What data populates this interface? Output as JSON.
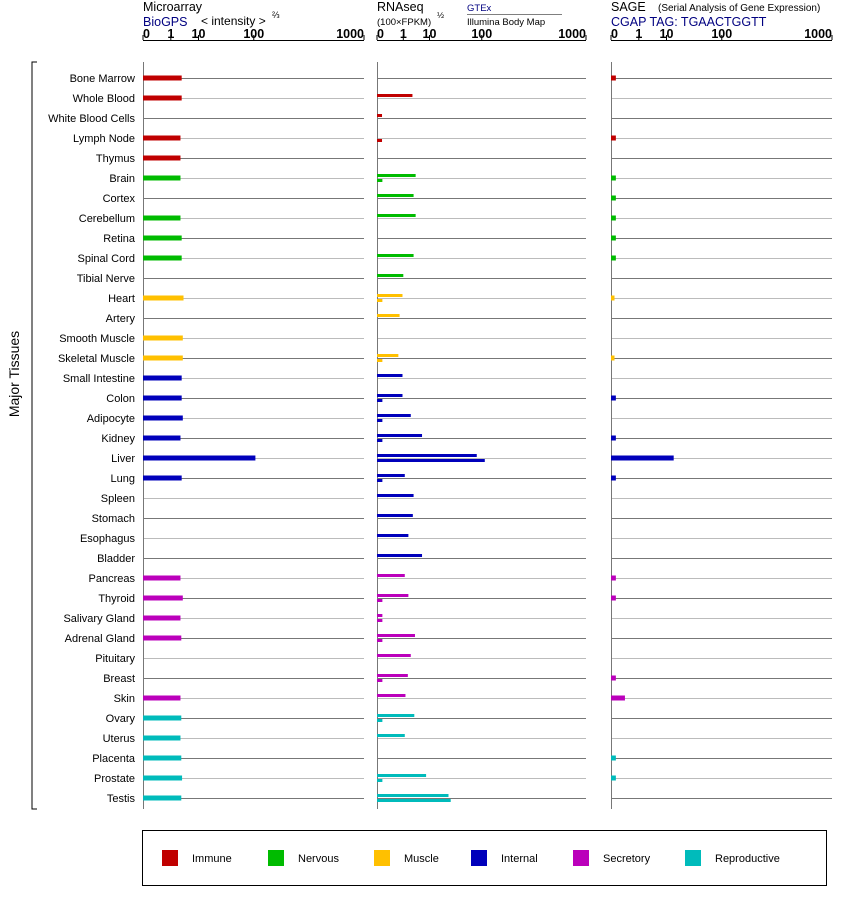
{
  "colors": {
    "Immune": "#c00000",
    "Nervous": "#00bb00",
    "Muscle": "#ffc000",
    "Internal": "#0000bb",
    "Secretory": "#bb00bb",
    "Reproductive": "#00bbbb",
    "blue_text": "#000080"
  },
  "y_axis_label": "Major Tissues",
  "legend": [
    "Immune",
    "Nervous",
    "Muscle",
    "Internal",
    "Secretory",
    "Reproductive"
  ],
  "panels": {
    "microarray": {
      "title": "Microarray",
      "source": "BioGPS",
      "unit_label": "< intensity >",
      "unit_exp": "⅔"
    },
    "rnaseq": {
      "title": "RNAseq",
      "unit_label": "(100×FPKM)",
      "unit_exp": "½",
      "legend_top": "GTEx",
      "legend_bottom": "Illumina Body Map"
    },
    "sage": {
      "title": "SAGE",
      "subtitle": "(Serial Analysis of Gene Expression)",
      "tag_label": "CGAP TAG: TGAACTGGTT"
    }
  },
  "chart_data": {
    "type": "bar",
    "orientation": "horizontal",
    "x_scale": "power",
    "tick_labels": [
      "0",
      "1",
      "10",
      "100",
      "1000"
    ],
    "ticks": [
      0,
      1,
      10,
      100,
      1000
    ],
    "xlim": [
      0,
      1000
    ],
    "categories": [
      "Bone Marrow",
      "Whole Blood",
      "White Blood Cells",
      "Lymph Node",
      "Thymus",
      "Brain",
      "Cortex",
      "Cerebellum",
      "Retina",
      "Spinal Cord",
      "Tibial Nerve",
      "Heart",
      "Artery",
      "Smooth Muscle",
      "Skeletal Muscle",
      "Small Intestine",
      "Colon",
      "Adipocyte",
      "Kidney",
      "Liver",
      "Lung",
      "Spleen",
      "Stomach",
      "Esophagus",
      "Bladder",
      "Pancreas",
      "Thyroid",
      "Salivary Gland",
      "Adrenal Gland",
      "Pituitary",
      "Breast",
      "Skin",
      "Ovary",
      "Uterus",
      "Placenta",
      "Prostate",
      "Testis"
    ],
    "groups": [
      "Immune",
      "Immune",
      "Immune",
      "Immune",
      "Immune",
      "Nervous",
      "Nervous",
      "Nervous",
      "Nervous",
      "Nervous",
      "Nervous",
      "Muscle",
      "Muscle",
      "Muscle",
      "Muscle",
      "Internal",
      "Internal",
      "Internal",
      "Internal",
      "Internal",
      "Internal",
      "Internal",
      "Internal",
      "Internal",
      "Internal",
      "Secretory",
      "Secretory",
      "Secretory",
      "Secretory",
      "Secretory",
      "Secretory",
      "Secretory",
      "Reproductive",
      "Reproductive",
      "Reproductive",
      "Reproductive",
      "Reproductive"
    ],
    "microarray": [
      3.0,
      3.0,
      null,
      2.7,
      2.7,
      2.7,
      null,
      2.7,
      3.0,
      3.0,
      null,
      3.5,
      null,
      3.3,
      3.3,
      3.0,
      3.0,
      3.3,
      2.7,
      105,
      3.0,
      null,
      null,
      null,
      null,
      2.7,
      3.3,
      2.7,
      2.9,
      null,
      null,
      2.7,
      2.9,
      2.7,
      2.9,
      3.1,
      2.9
    ],
    "rnaseq_gtex": [
      null,
      2.7,
      0.004,
      null,
      null,
      3.6,
      3.0,
      3.6,
      null,
      3.0,
      1.0,
      0.9,
      0.6,
      null,
      0.5,
      0.9,
      0.9,
      2.3,
      6.0,
      85,
      1.2,
      3.0,
      2.8,
      1.8,
      6.0,
      1.2,
      1.8,
      0.005,
      3.4,
      2.3,
      1.7,
      1.3,
      3.2,
      1.2,
      null,
      8.0,
      28
    ],
    "rnaseq_ibm": [
      null,
      null,
      null,
      0.004,
      null,
      0.005,
      null,
      null,
      null,
      null,
      null,
      0.005,
      null,
      null,
      0.005,
      null,
      0.005,
      0.005,
      0.005,
      110,
      0.005,
      null,
      null,
      null,
      null,
      null,
      0.005,
      0.005,
      0.005,
      null,
      0.005,
      null,
      0.005,
      null,
      null,
      0.005,
      31
    ],
    "sage": [
      0.003,
      null,
      null,
      0.003,
      null,
      0.003,
      0.003,
      0.003,
      0.003,
      0.003,
      null,
      0.001,
      null,
      null,
      0.001,
      null,
      0.003,
      null,
      0.003,
      15,
      0.003,
      null,
      null,
      null,
      null,
      0.003,
      0.003,
      null,
      null,
      null,
      0.003,
      0.1,
      null,
      null,
      0.003,
      0.003,
      null
    ]
  }
}
